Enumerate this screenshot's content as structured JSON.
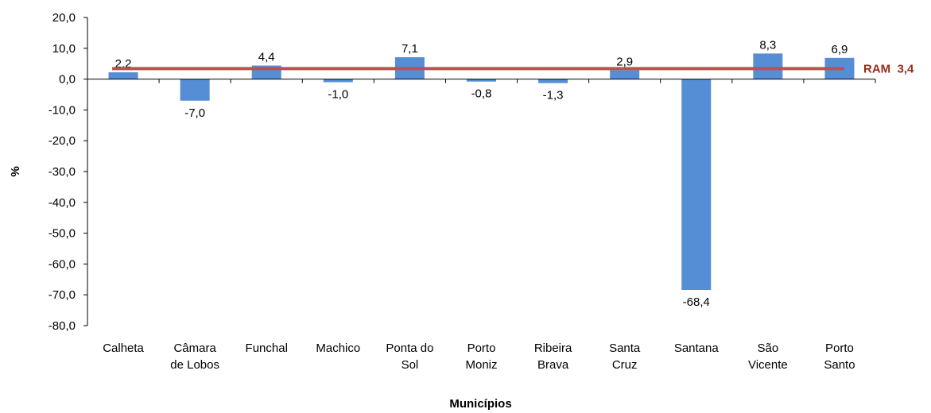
{
  "chart_data": {
    "type": "bar",
    "categories": [
      [
        "Calheta"
      ],
      [
        "Câmara",
        "de Lobos"
      ],
      [
        "Funchal"
      ],
      [
        "Machico"
      ],
      [
        "Ponta do",
        "Sol"
      ],
      [
        "Porto",
        "Moniz"
      ],
      [
        "Ribeira",
        "Brava"
      ],
      [
        "Santa",
        "Cruz"
      ],
      [
        "Santana"
      ],
      [
        "São",
        "Vicente"
      ],
      [
        "Porto",
        "Santo"
      ]
    ],
    "values": [
      2.2,
      -7.0,
      4.4,
      -1.0,
      7.1,
      -0.8,
      -1.3,
      2.9,
      -68.4,
      8.3,
      6.9
    ],
    "value_labels": [
      "2,2",
      "-7,0",
      "4,4",
      "-1,0",
      "7,1",
      "-0,8",
      "-1,3",
      "2,9",
      "-68,4",
      "8,3",
      "6,9"
    ],
    "reference_line": {
      "label": "RAM  3,4",
      "value": 3.4,
      "color": "#c0504d"
    },
    "ylim": [
      -80,
      20
    ],
    "yticks": [
      20,
      10,
      0,
      -10,
      -20,
      -30,
      -40,
      -50,
      -60,
      -70,
      -80
    ],
    "ytick_labels": [
      "20,0",
      "10,0",
      "0,0",
      "-10,0",
      "-20,0",
      "-30,0",
      "-40,0",
      "-50,0",
      "-60,0",
      "-70,0",
      "-80,0"
    ],
    "xlabel": "Municípios",
    "ylabel": "%",
    "bar_color": "#558ed5",
    "ref_label_color": "#9c2a1a",
    "grid": false
  }
}
